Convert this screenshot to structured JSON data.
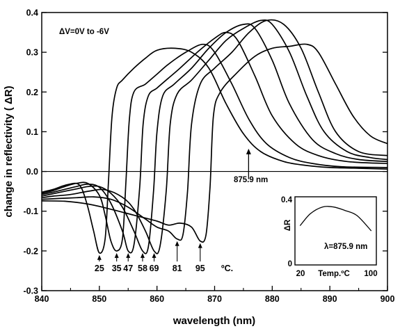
{
  "chart_data": {
    "type": "line",
    "xlabel": "wavelength (nm)",
    "ylabel": "change in reflectivity ( ΔR)",
    "xlim": [
      840,
      900
    ],
    "ylim": [
      -0.3,
      0.4
    ],
    "x_ticks": [
      "840",
      "850",
      "860",
      "870",
      "880",
      "890",
      "900"
    ],
    "y_ticks": [
      "-0.3",
      "-0.2",
      "-0.1",
      "0.0",
      "0.1",
      "0.2",
      "0.3",
      "0.4"
    ],
    "reference_wavelength": 875.9,
    "annotations": {
      "voltage": "ΔV=0V to -6V",
      "wavelength_marker": "875.9 nm",
      "temperature_unit": "ºC."
    },
    "series": [
      {
        "temp_label": "25",
        "values": [
          [
            840,
            -0.052
          ],
          [
            842,
            -0.045
          ],
          [
            844,
            -0.035
          ],
          [
            846,
            -0.03
          ],
          [
            847,
            -0.045
          ],
          [
            848,
            -0.09
          ],
          [
            849,
            -0.15
          ],
          [
            850,
            -0.205
          ],
          [
            851,
            -0.17
          ],
          [
            851.6,
            -0.02
          ],
          [
            852.2,
            0.14
          ],
          [
            853,
            0.21
          ],
          [
            854,
            0.23
          ],
          [
            856,
            0.26
          ],
          [
            858,
            0.285
          ],
          [
            860,
            0.305
          ],
          [
            863,
            0.31
          ],
          [
            866,
            0.3
          ],
          [
            869,
            0.26
          ],
          [
            872,
            0.17
          ],
          [
            875,
            0.095
          ],
          [
            878,
            0.05
          ],
          [
            882,
            0.025
          ],
          [
            886,
            0.015
          ],
          [
            890,
            0.01
          ],
          [
            895,
            0.008
          ],
          [
            900,
            0.006
          ]
        ]
      },
      {
        "temp_label": "35",
        "values": [
          [
            840,
            -0.055
          ],
          [
            842,
            -0.048
          ],
          [
            844,
            -0.038
          ],
          [
            846,
            -0.03
          ],
          [
            848,
            -0.03
          ],
          [
            850,
            -0.06
          ],
          [
            851,
            -0.11
          ],
          [
            852,
            -0.175
          ],
          [
            853,
            -0.2
          ],
          [
            854,
            -0.17
          ],
          [
            854.6,
            -0.03
          ],
          [
            855.2,
            0.13
          ],
          [
            856,
            0.2
          ],
          [
            858,
            0.22
          ],
          [
            860,
            0.245
          ],
          [
            862,
            0.27
          ],
          [
            865,
            0.3
          ],
          [
            868,
            0.32
          ],
          [
            870,
            0.3
          ],
          [
            873,
            0.22
          ],
          [
            876,
            0.13
          ],
          [
            879,
            0.07
          ],
          [
            883,
            0.035
          ],
          [
            887,
            0.02
          ],
          [
            892,
            0.012
          ],
          [
            900,
            0.01
          ]
        ]
      },
      {
        "temp_label": "47",
        "values": [
          [
            840,
            -0.058
          ],
          [
            842,
            -0.052
          ],
          [
            844,
            -0.045
          ],
          [
            846,
            -0.038
          ],
          [
            848,
            -0.032
          ],
          [
            850,
            -0.04
          ],
          [
            852,
            -0.08
          ],
          [
            854,
            -0.15
          ],
          [
            855,
            -0.2
          ],
          [
            856,
            -0.185
          ],
          [
            857,
            -0.04
          ],
          [
            857.6,
            0.12
          ],
          [
            858.5,
            0.19
          ],
          [
            860,
            0.21
          ],
          [
            862,
            0.235
          ],
          [
            864,
            0.26
          ],
          [
            867,
            0.3
          ],
          [
            870,
            0.335
          ],
          [
            872,
            0.35
          ],
          [
            874,
            0.33
          ],
          [
            877,
            0.24
          ],
          [
            880,
            0.14
          ],
          [
            884,
            0.07
          ],
          [
            888,
            0.04
          ],
          [
            893,
            0.025
          ],
          [
            900,
            0.02
          ]
        ]
      },
      {
        "temp_label": "58",
        "values": [
          [
            840,
            -0.062
          ],
          [
            842,
            -0.056
          ],
          [
            844,
            -0.05
          ],
          [
            846,
            -0.044
          ],
          [
            848,
            -0.038
          ],
          [
            850,
            -0.038
          ],
          [
            852,
            -0.055
          ],
          [
            854,
            -0.09
          ],
          [
            856,
            -0.15
          ],
          [
            857.5,
            -0.2
          ],
          [
            858.5,
            -0.19
          ],
          [
            859.4,
            -0.05
          ],
          [
            860,
            0.1
          ],
          [
            861,
            0.19
          ],
          [
            863,
            0.22
          ],
          [
            866,
            0.26
          ],
          [
            869,
            0.31
          ],
          [
            872,
            0.35
          ],
          [
            875,
            0.37
          ],
          [
            877,
            0.36
          ],
          [
            880,
            0.28
          ],
          [
            883,
            0.17
          ],
          [
            887,
            0.08
          ],
          [
            891,
            0.045
          ],
          [
            895,
            0.03
          ],
          [
            900,
            0.025
          ]
        ]
      },
      {
        "temp_label": "69",
        "values": [
          [
            840,
            -0.066
          ],
          [
            842,
            -0.062
          ],
          [
            845,
            -0.058
          ],
          [
            848,
            -0.05
          ],
          [
            851,
            -0.046
          ],
          [
            854,
            -0.065
          ],
          [
            856,
            -0.095
          ],
          [
            858,
            -0.15
          ],
          [
            859.5,
            -0.2
          ],
          [
            860.5,
            -0.19
          ],
          [
            861.6,
            -0.05
          ],
          [
            862.3,
            0.12
          ],
          [
            863.5,
            0.195
          ],
          [
            866,
            0.23
          ],
          [
            869,
            0.28
          ],
          [
            872,
            0.33
          ],
          [
            875,
            0.36
          ],
          [
            878,
            0.38
          ],
          [
            880,
            0.37
          ],
          [
            883,
            0.3
          ],
          [
            886,
            0.19
          ],
          [
            889,
            0.1
          ],
          [
            893,
            0.05
          ],
          [
            897,
            0.035
          ],
          [
            900,
            0.03
          ]
        ]
      },
      {
        "temp_label": "81",
        "values": [
          [
            840,
            -0.07
          ],
          [
            843,
            -0.068
          ],
          [
            846,
            -0.066
          ],
          [
            849,
            -0.064
          ],
          [
            852,
            -0.07
          ],
          [
            855,
            -0.09
          ],
          [
            858,
            -0.12
          ],
          [
            860,
            -0.14
          ],
          [
            862,
            -0.15
          ],
          [
            863.5,
            -0.17
          ],
          [
            864.5,
            -0.16
          ],
          [
            865.3,
            -0.05
          ],
          [
            866,
            0.12
          ],
          [
            867.5,
            0.22
          ],
          [
            870,
            0.26
          ],
          [
            873,
            0.3
          ],
          [
            876,
            0.35
          ],
          [
            879,
            0.38
          ],
          [
            882,
            0.37
          ],
          [
            885,
            0.31
          ],
          [
            888,
            0.2
          ],
          [
            891,
            0.1
          ],
          [
            895,
            0.05
          ],
          [
            900,
            0.04
          ]
        ]
      },
      {
        "temp_label": "95",
        "values": [
          [
            840,
            -0.074
          ],
          [
            844,
            -0.075
          ],
          [
            848,
            -0.082
          ],
          [
            852,
            -0.095
          ],
          [
            856,
            -0.11
          ],
          [
            860,
            -0.125
          ],
          [
            862,
            -0.135
          ],
          [
            864,
            -0.13
          ],
          [
            866,
            -0.14
          ],
          [
            867.5,
            -0.175
          ],
          [
            868.5,
            -0.16
          ],
          [
            869.2,
            -0.04
          ],
          [
            869.8,
            0.14
          ],
          [
            871,
            0.2
          ],
          [
            874,
            0.25
          ],
          [
            877,
            0.29
          ],
          [
            880,
            0.31
          ],
          [
            883,
            0.315
          ],
          [
            886,
            0.32
          ],
          [
            888,
            0.3
          ],
          [
            891,
            0.22
          ],
          [
            894,
            0.14
          ],
          [
            897,
            0.09
          ],
          [
            900,
            0.07
          ]
        ]
      }
    ],
    "inset": {
      "type": "line",
      "xlabel": "Temp.ºC",
      "ylabel": "ΔR",
      "label": "λ=875.9 nm",
      "x_ticks": [
        "20",
        "100"
      ],
      "y_ticks": [
        "0",
        "0.4"
      ],
      "xlim": [
        20,
        100
      ],
      "ylim": [
        0,
        0.4
      ],
      "points": [
        [
          25,
          0.23
        ],
        [
          35,
          0.3
        ],
        [
          47,
          0.34
        ],
        [
          58,
          0.34
        ],
        [
          69,
          0.32
        ],
        [
          81,
          0.29
        ],
        [
          95,
          0.2
        ]
      ]
    }
  }
}
